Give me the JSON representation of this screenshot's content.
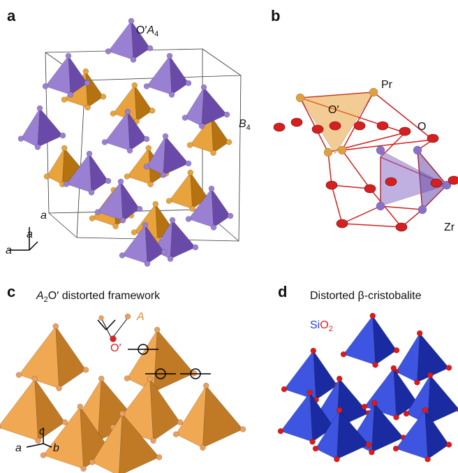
{
  "panels": [
    {
      "letter": "a",
      "labels": {
        "oa4": {
          "prefix": "O′",
          "italic": "A",
          "sub": "4"
        },
        "b4": {
          "italic": "B",
          "sub": "4"
        }
      },
      "axes": [
        "a",
        "a",
        "a"
      ]
    },
    {
      "letter": "b",
      "atoms": [
        "Pr",
        "O′",
        "O",
        "Zr"
      ]
    },
    {
      "letter": "c",
      "title": {
        "italic": "A",
        "sub": "2",
        "rest": "O′ distorted framework"
      },
      "atoms": [
        "A",
        "O′"
      ],
      "axes": [
        "c",
        "a",
        "b"
      ]
    },
    {
      "letter": "d",
      "title": "Distorted β-cristobalite",
      "formula": {
        "si": "Si",
        "o": "O",
        "sub": "2"
      }
    }
  ]
}
